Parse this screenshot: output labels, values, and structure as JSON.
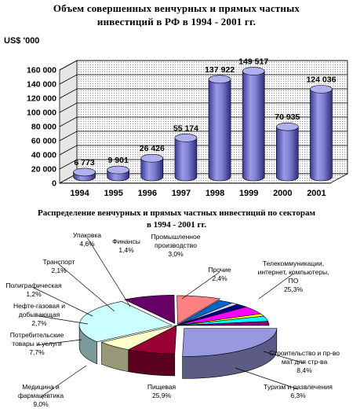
{
  "bar_chart": {
    "title_line1": "Объем совершенных венчурных и прямых частных",
    "title_line2": "инвестиций в РФ в 1994 - 2001 гг.",
    "unit_label": "US$ '000"
  },
  "pie_chart": {
    "title_line1": "Распределение венчурных и прямых частных инвестиций по секторам",
    "title_line2": "в 1994 - 2001 гг."
  },
  "chart_data": [
    {
      "type": "bar",
      "style": "3d-cylinder",
      "title": "Объем совершенных венчурных и прямых частных инвестиций в РФ в 1994 - 2001 гг.",
      "ylabel": "US$ '000",
      "categories": [
        "1994",
        "1995",
        "1996",
        "1997",
        "1998",
        "1999",
        "2000",
        "2001"
      ],
      "values": [
        6773,
        9901,
        26426,
        55174,
        137922,
        149517,
        70935,
        124036
      ],
      "value_labels": [
        "6 773",
        "9 901",
        "26 426",
        "55 174",
        "137 922",
        "149 517",
        "70 935",
        "124 036"
      ],
      "ylim": [
        0,
        160000
      ],
      "yticks": [
        0,
        20000,
        40000,
        60000,
        80000,
        100000,
        120000,
        140000,
        160000
      ],
      "ytick_labels": [
        "0",
        "20 000",
        "40 000",
        "60 000",
        "80 000",
        "100 000",
        "120 000",
        "140 000",
        "160 000"
      ],
      "grid": true,
      "bar_color": "#8b8bd8"
    },
    {
      "type": "pie",
      "style": "3d-exploded",
      "title": "Распределение венчурных и прямых частных инвестиций по секторам в 1994 - 2001 гг.",
      "slices": [
        {
          "label": "Телекоммуникации, интернет, компьютеры, ПО",
          "label_lines": [
            "Телекоммуникации,",
            "интернет, компьютеры,",
            "ПО"
          ],
          "pct_label": "25,3%",
          "value": 25.3,
          "color": "#9898e0"
        },
        {
          "label": "Строительство и пр-во мат для стр-ва",
          "label_lines": [
            "Строительство и пр-во",
            "мат для стр-ва"
          ],
          "pct_label": "8,4%",
          "value": 8.4,
          "color": "#990033"
        },
        {
          "label": "Туризм и развлечения",
          "label_lines": [
            "Туризм и развлечения"
          ],
          "pct_label": "6,3%",
          "value": 6.3,
          "color": "#ffffcc"
        },
        {
          "label": "Пищевая",
          "label_lines": [
            "Пищевая"
          ],
          "pct_label": "25,9%",
          "value": 25.9,
          "color": "#ccffff"
        },
        {
          "label": "Медицина и фармацевтика",
          "label_lines": [
            "Медицина и",
            "фармацевтика"
          ],
          "pct_label": "9,0%",
          "value": 9.0,
          "color": "#660066"
        },
        {
          "label": "Потребительские товары и услуги",
          "label_lines": [
            "Потребительские",
            "товары и услуги"
          ],
          "pct_label": "7,7%",
          "value": 7.7,
          "color": "#ff8080"
        },
        {
          "label": "Нефте-газовая и добывающая",
          "label_lines": [
            "Нефте-газовая и",
            "добывающая"
          ],
          "pct_label": "2,7%",
          "value": 2.7,
          "color": "#0066cc"
        },
        {
          "label": "Полиграфическая",
          "label_lines": [
            "Полиграфическая"
          ],
          "pct_label": "1,2%",
          "value": 1.2,
          "color": "#ccccff"
        },
        {
          "label": "Транспорт",
          "label_lines": [
            "Транспорт"
          ],
          "pct_label": "2,1%",
          "value": 2.1,
          "color": "#000080"
        },
        {
          "label": "Упаковка",
          "label_lines": [
            "Упаковка"
          ],
          "pct_label": "4,6%",
          "value": 4.6,
          "color": "#ff00ff"
        },
        {
          "label": "Финансы",
          "label_lines": [
            "Финансы"
          ],
          "pct_label": "1,4%",
          "value": 1.4,
          "color": "#ffff00"
        },
        {
          "label": "Промышленное производство",
          "label_lines": [
            "Промышленное",
            "производство"
          ],
          "pct_label": "3,0%",
          "value": 3.0,
          "color": "#00ffff"
        },
        {
          "label": "Прочие",
          "label_lines": [
            "Прочие"
          ],
          "pct_label": "2,4%",
          "value": 2.4,
          "color": "#800080"
        }
      ]
    }
  ]
}
